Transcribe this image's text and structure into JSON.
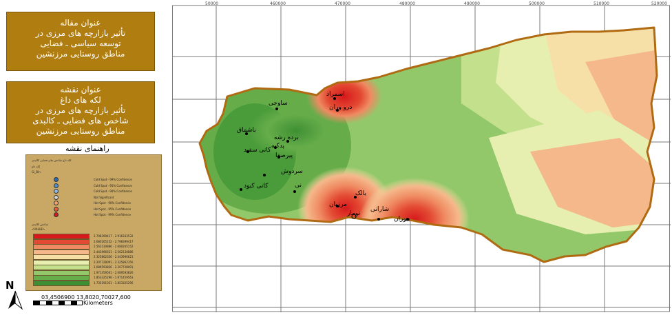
{
  "title_box": {
    "heading": "عنوان مقاله",
    "lines": [
      "تأثیر بازارچه های مرزی در",
      "توسعه  سیاسی ـ فضایی",
      "مناطق روستایی مرزنشین"
    ]
  },
  "map_title_box": {
    "heading": "عنوان نقشه",
    "lines": [
      "لکه های داغ",
      "تأثیر بازارچه های مرزی در",
      "شاخص های فضایی ـ کالبدی",
      "مناطق روستایی مرزنشین"
    ]
  },
  "legend_title": "راهنمای نقشه",
  "legend": {
    "heading": "لکه داغ شاخص های فضایی کالبدی",
    "subheading": "لکه داغ",
    "gi_bin": "Gi_Bin",
    "point_classes": [
      "Cold Spot - 99% Confidence",
      "Cold Spot - 95% Confidence",
      "Cold Spot - 90% Confidence",
      "Not Significant",
      "Hot Spot - 90% Confidence",
      "Hot Spot - 95% Confidence",
      "Hot Spot - 99% Confidence"
    ],
    "raster_heading": "شاخص کالبدی",
    "raster_field": "<VALUE>",
    "raster_classes": [
      "2.798399417 - 2.916333532",
      "2.680265152 - 2.798399417",
      "2.562130886 - 2.680265152",
      "2.443996621 - 2.562130886",
      "2.325862356 - 2.443996621",
      "2.207728091 - 2.325862356",
      "2.089593826 - 2.207728091",
      "1.971459561 - 2.089593826",
      "1.853325296 - 1.971459561",
      "1.735191031 - 1.853325296"
    ],
    "raster_colors": [
      "#d7191c",
      "#e34a33",
      "#ef8a62",
      "#f5b88a",
      "#f7e0a8",
      "#e6efb0",
      "#c3e08c",
      "#93c86a",
      "#66ad4a",
      "#3e8f33"
    ]
  },
  "scale": {
    "numbers": "03,4506900 13,8020,70027,600",
    "unit": "Kilometers"
  },
  "north_label": "N",
  "graticule_labels": [
    "50000",
    "460000",
    "470000",
    "480000",
    "490000",
    "500000",
    "510000",
    "520000"
  ],
  "places": [
    {
      "name": "اسمراد",
      "color": "#000"
    },
    {
      "name": "درو وران",
      "color": "#000"
    },
    {
      "name": "ساوجی",
      "color": "#000"
    },
    {
      "name": "باشماق",
      "color": "#000"
    },
    {
      "name": "برده رشه",
      "color": "#000"
    },
    {
      "name": "پدکیه",
      "color": "#000"
    },
    {
      "name": "کانی سفید",
      "color": "#000"
    },
    {
      "name": "پیرصفا",
      "color": "#000"
    },
    {
      "name": "سردوش",
      "color": "#000"
    },
    {
      "name": "کانی کبود",
      "color": "#000"
    },
    {
      "name": "نی",
      "color": "#000"
    },
    {
      "name": "بالک",
      "color": "#000"
    },
    {
      "name": "مرزیان",
      "color": "#000"
    },
    {
      "name": "شارانی",
      "color": "#000"
    },
    {
      "name": "تومار",
      "color": "#000"
    },
    {
      "name": "بیوران",
      "color": "#000"
    }
  ]
}
